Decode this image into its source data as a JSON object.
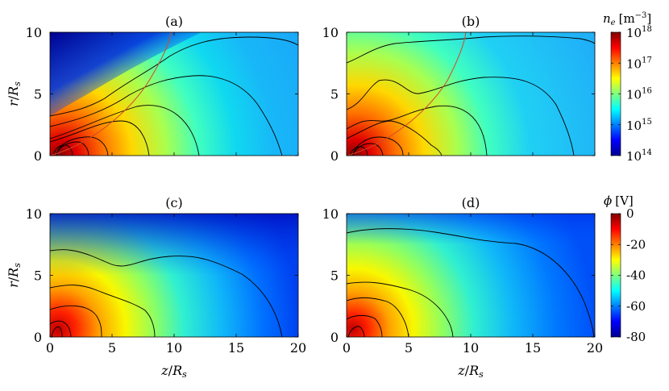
{
  "chart_data": [
    {
      "type": "heatmap",
      "panel_label": "(a)",
      "quantity": "n_e",
      "xlabel": "",
      "ylabel": "r/R_s",
      "x_ticks": [
        "0",
        "5",
        "10",
        "15",
        "20"
      ],
      "y_ticks": [
        "0",
        "5",
        "10"
      ],
      "xlim": [
        0,
        20
      ],
      "ylim": [
        0,
        10
      ],
      "colormap": "jet",
      "color_scale": "log",
      "red_curve": true
    },
    {
      "type": "heatmap",
      "panel_label": "(b)",
      "quantity": "n_e",
      "xlabel": "",
      "ylabel": "",
      "x_ticks": [
        "0",
        "5",
        "10",
        "15",
        "20"
      ],
      "y_ticks": [
        "0",
        "5",
        "10"
      ],
      "xlim": [
        0,
        20
      ],
      "ylim": [
        0,
        10
      ],
      "colormap": "jet",
      "color_scale": "log",
      "red_curve": true
    },
    {
      "type": "heatmap",
      "panel_label": "(c)",
      "quantity": "phi",
      "xlabel": "z/R_s",
      "ylabel": "r/R_s",
      "x_ticks": [
        "0",
        "5",
        "10",
        "15",
        "20"
      ],
      "y_ticks": [
        "0",
        "5",
        "10"
      ],
      "xlim": [
        0,
        20
      ],
      "ylim": [
        0,
        10
      ],
      "colormap": "jet",
      "color_scale": "linear",
      "red_curve": false
    },
    {
      "type": "heatmap",
      "panel_label": "(d)",
      "quantity": "phi",
      "xlabel": "z/R_s",
      "ylabel": "",
      "x_ticks": [
        "0",
        "5",
        "10",
        "15",
        "20"
      ],
      "y_ticks": [
        "0",
        "5",
        "10"
      ],
      "xlim": [
        0,
        20
      ],
      "ylim": [
        0,
        10
      ],
      "colormap": "jet",
      "color_scale": "linear",
      "red_curve": false
    }
  ],
  "colorbars": {
    "density": {
      "label_sym": "n",
      "label_sub": "e",
      "label_unit": "[m",
      "label_exp": "−3",
      "label_close": "]",
      "ticks": [
        {
          "base": "10",
          "exp": "18"
        },
        {
          "base": "10",
          "exp": "17"
        },
        {
          "base": "10",
          "exp": "16"
        },
        {
          "base": "10",
          "exp": "15"
        },
        {
          "base": "10",
          "exp": "14"
        }
      ]
    },
    "potential": {
      "label_sym": "ϕ",
      "label_unit": "[V]",
      "ticks": [
        "0",
        "-20",
        "-40",
        "-60",
        "-80"
      ]
    }
  },
  "axis_text": {
    "ylabel_num": "r",
    "ylabel_den": "R",
    "ylabel_sub": "s",
    "xlabel_num": "z",
    "xlabel_den": "R",
    "xlabel_sub": "s",
    "slash": "/"
  },
  "colors": {
    "contour": "#000000",
    "red_curve": "#d04a2a"
  }
}
